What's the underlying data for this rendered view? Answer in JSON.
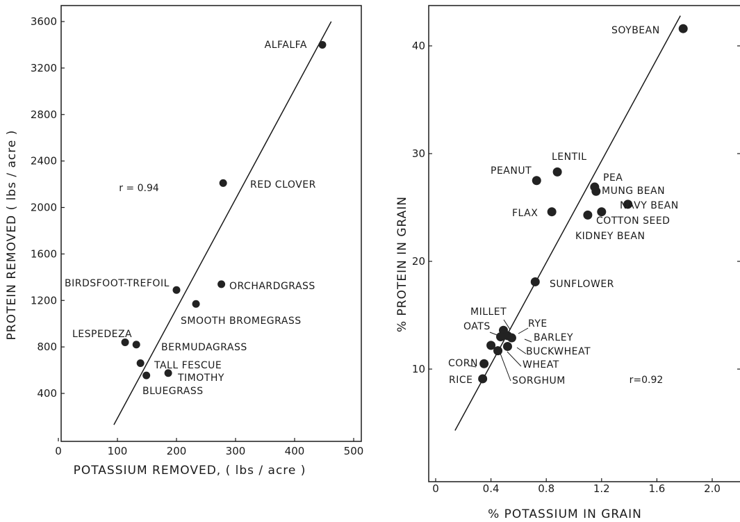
{
  "chart_data": [
    {
      "type": "scatter",
      "xlabel": "POTASSIUM  REMOVED, ( lbs / acre )",
      "ylabel": "PROTEIN  REMOVED  ( lbs / acre )",
      "xlim": [
        0,
        500
      ],
      "ylim": [
        0,
        3700
      ],
      "xticks": [
        "0",
        "100",
        "200",
        "300",
        "400",
        "500"
      ],
      "yticks": [
        "400",
        "800",
        "1200",
        "1600",
        "2000",
        "2400",
        "2800",
        "3200",
        "3600"
      ],
      "annotation": "r = 0.94",
      "points": [
        {
          "label": "ALFALFA",
          "x": 447,
          "y": 3400
        },
        {
          "label": "RED  CLOVER",
          "x": 279,
          "y": 2210
        },
        {
          "label": "ORCHARDGRASS",
          "x": 276,
          "y": 1340
        },
        {
          "label": "BIRDSFOOT-TREFOIL",
          "x": 200,
          "y": 1290
        },
        {
          "label": "SMOOTH  BROMEGRASS",
          "x": 233,
          "y": 1170
        },
        {
          "label": "LESPEDEZA",
          "x": 113,
          "y": 840
        },
        {
          "label": "BERMUDAGRASS",
          "x": 132,
          "y": 820
        },
        {
          "label": "TALL  FESCUE",
          "x": 139,
          "y": 660
        },
        {
          "label": "TIMOTHY",
          "x": 186,
          "y": 575
        },
        {
          "label": "BLUEGRASS",
          "x": 149,
          "y": 555
        }
      ],
      "fit_line": [
        [
          94,
          130
        ],
        [
          462,
          3600
        ]
      ]
    },
    {
      "type": "scatter",
      "xlabel": "% POTASSIUM  IN  GRAIN",
      "ylabel": "% PROTEIN  IN  GRAIN",
      "xlim": [
        0,
        2.2
      ],
      "ylim": [
        0,
        42
      ],
      "xticks": [
        "0",
        "0.4",
        "0.8",
        "1.2",
        "1.6",
        "2.0"
      ],
      "yticks": [
        "10",
        "20",
        "30",
        "40"
      ],
      "annotation": "r=0.92",
      "points": [
        {
          "label": "SOYBEAN",
          "x": 1.79,
          "y": 41.6
        },
        {
          "label": "LENTIL",
          "x": 0.88,
          "y": 28.3
        },
        {
          "label": "PEANUT",
          "x": 0.73,
          "y": 27.5
        },
        {
          "label": "PEA",
          "x": 1.15,
          "y": 26.9
        },
        {
          "label": "MUNG  BEAN",
          "x": 1.16,
          "y": 26.5
        },
        {
          "label": "NAVY  BEAN",
          "x": 1.39,
          "y": 25.3
        },
        {
          "label": "FLAX",
          "x": 0.84,
          "y": 24.6
        },
        {
          "label": "COTTON  SEED",
          "x": 1.2,
          "y": 24.6
        },
        {
          "label": "KIDNEY  BEAN",
          "x": 1.1,
          "y": 24.3
        },
        {
          "label": "SUNFLOWER",
          "x": 0.72,
          "y": 18.1
        },
        {
          "label": "MILLET",
          "x": 0.49,
          "y": 13.6
        },
        {
          "label": "OATS",
          "x": 0.47,
          "y": 13.0
        },
        {
          "label": "RYE",
          "x": 0.52,
          "y": 13.1
        },
        {
          "label": "BARLEY",
          "x": 0.55,
          "y": 12.9
        },
        {
          "label": "BUCKWHEAT",
          "x": 0.52,
          "y": 12.1
        },
        {
          "label": "WHEAT",
          "x": 0.45,
          "y": 11.7
        },
        {
          "label": "SORGHUM",
          "x": 0.4,
          "y": 12.2
        },
        {
          "label": "CORN",
          "x": 0.35,
          "y": 10.5
        },
        {
          "label": "RICE",
          "x": 0.34,
          "y": 9.1
        }
      ],
      "fit_line": [
        [
          0.14,
          4.3
        ],
        [
          1.77,
          42.8
        ]
      ]
    }
  ]
}
